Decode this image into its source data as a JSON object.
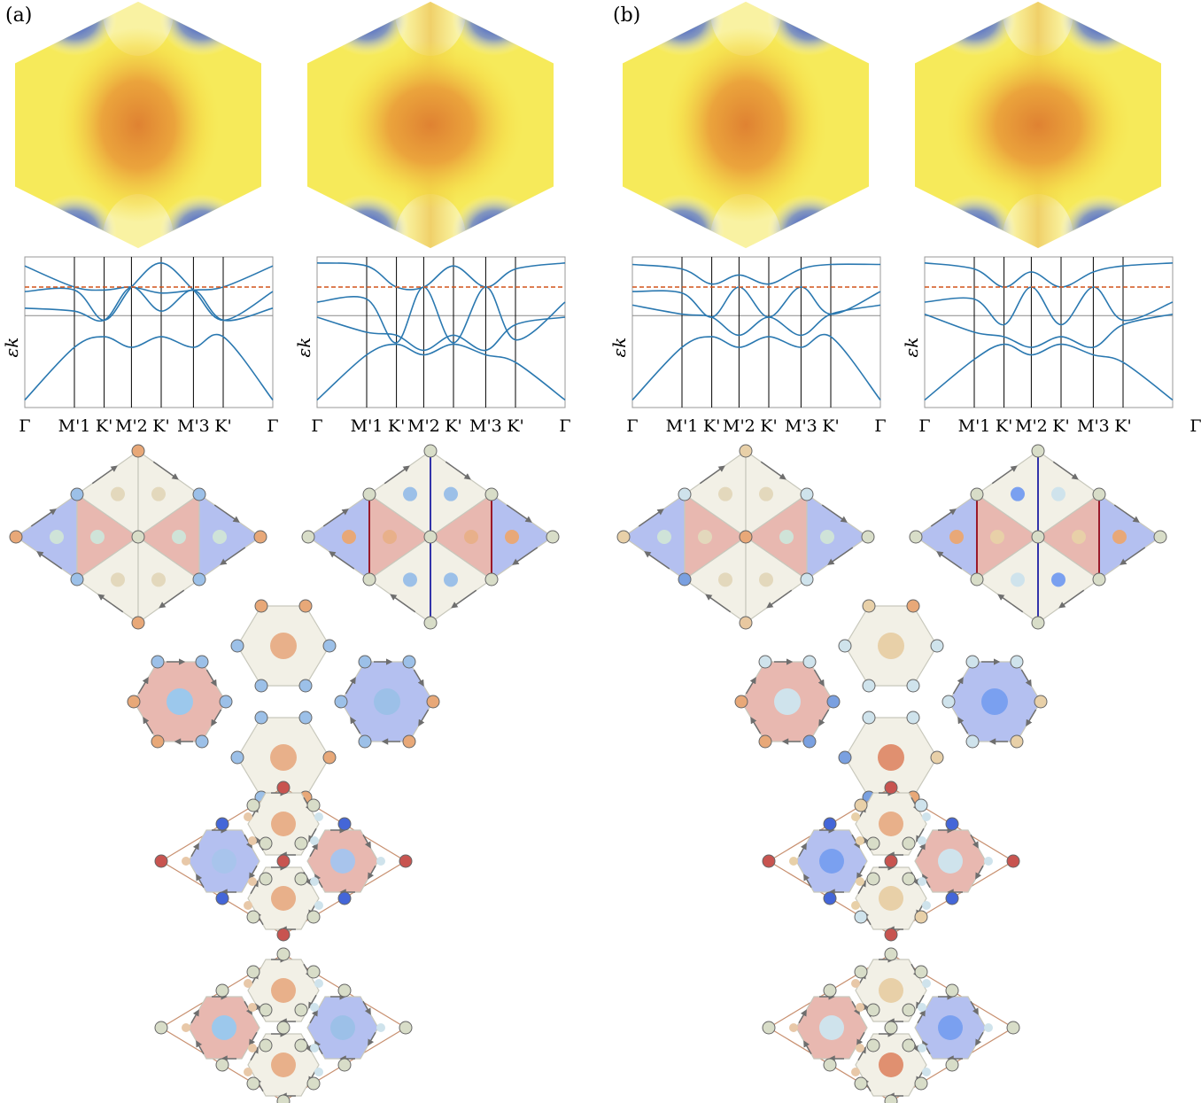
{
  "panels": [
    {
      "label": "(a)"
    },
    {
      "label": "(b)"
    }
  ],
  "band_plot": {
    "ylabel": "εk",
    "k_points": [
      "Γ",
      "M'1",
      "K'",
      "M'2",
      "K'",
      "M'3",
      "K'",
      "Γ"
    ]
  },
  "colors": {
    "band_line": "#2a78b0",
    "fermi_line": "#d2541a",
    "bz_center": "#e08a38",
    "bz_mid": "#f4e04a",
    "bz_low": "#3355d0",
    "site_orange": "#e8a878",
    "site_blue": "#9cc0e8",
    "site_pale": "#d8ddc8",
    "site_red": "#c85450",
    "cell_red": "#e8b8b0",
    "cell_blue": "#b4c0f0",
    "cell_neutral": "#f2f0e6",
    "arrow": "#6e6e6e"
  }
}
